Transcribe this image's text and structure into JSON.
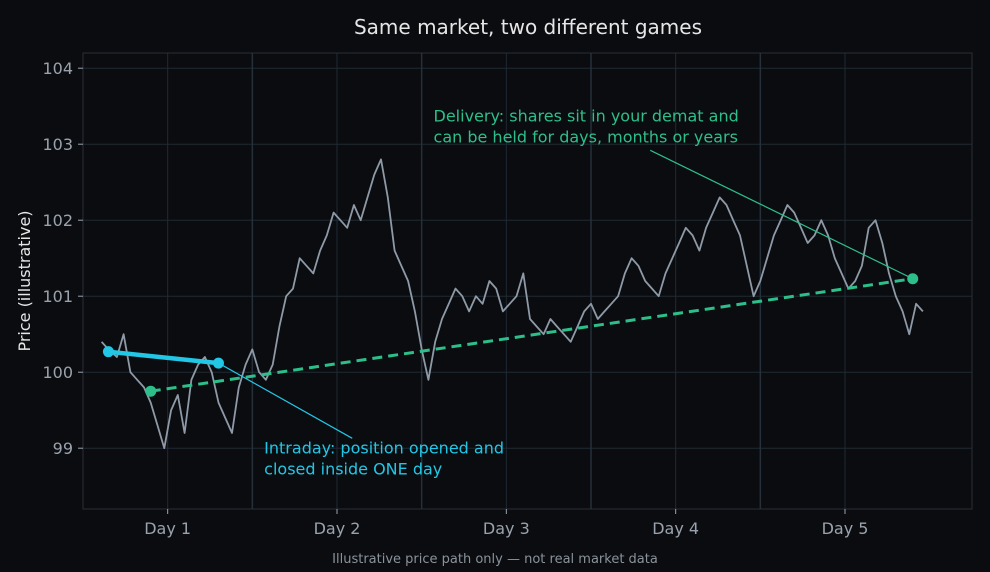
{
  "chart_data": {
    "type": "line",
    "title": "Same market, two different games",
    "xlabel": "",
    "ylabel": "Price (illustrative)",
    "footnote": "Illustrative price path only — not real market data",
    "x_ticks": [
      {
        "value": 1,
        "label": "Day 1"
      },
      {
        "value": 2,
        "label": "Day 2"
      },
      {
        "value": 3,
        "label": "Day 3"
      },
      {
        "value": 4,
        "label": "Day 4"
      },
      {
        "value": 5,
        "label": "Day 5"
      }
    ],
    "xlim": [
      0.5,
      5.75
    ],
    "ylim": [
      98.2,
      104.2
    ],
    "y_ticks": [
      99,
      100,
      101,
      102,
      103,
      104
    ],
    "day_separators": [
      1.5,
      2.5,
      3.5,
      4.5
    ],
    "grid": true,
    "colors": {
      "background": "#0b0c10",
      "plot_background": "#0b0c10",
      "grid": "#1f2a33",
      "separator": "#25303a",
      "price": "#8e9aa7",
      "intraday": "#22c7e6",
      "delivery": "#2dbf8a",
      "text": "#e6e6e6",
      "tick": "#9aa3ad",
      "footnote": "#8a929b"
    },
    "price_series": {
      "x": [
        0.61,
        0.65,
        0.7,
        0.74,
        0.78,
        0.82,
        0.86,
        0.9,
        0.94,
        0.98,
        1.02,
        1.06,
        1.1,
        1.14,
        1.18,
        1.22,
        1.26,
        1.3,
        1.34,
        1.38,
        1.42,
        1.46,
        1.5,
        1.54,
        1.58,
        1.62,
        1.66,
        1.7,
        1.74,
        1.78,
        1.82,
        1.86,
        1.9,
        1.94,
        1.98,
        2.02,
        2.06,
        2.1,
        2.14,
        2.18,
        2.22,
        2.26,
        2.3,
        2.34,
        2.38,
        2.42,
        2.46,
        2.5,
        2.54,
        2.58,
        2.62,
        2.66,
        2.7,
        2.74,
        2.78,
        2.82,
        2.86,
        2.9,
        2.94,
        2.98,
        3.02,
        3.06,
        3.1,
        3.14,
        3.18,
        3.22,
        3.26,
        3.3,
        3.34,
        3.38,
        3.42,
        3.46,
        3.5,
        3.54,
        3.58,
        3.62,
        3.66,
        3.7,
        3.74,
        3.78,
        3.82,
        3.86,
        3.9,
        3.94,
        3.98,
        4.02,
        4.06,
        4.1,
        4.14,
        4.18,
        4.22,
        4.26,
        4.3,
        4.34,
        4.38,
        4.42,
        4.46,
        4.5,
        4.54,
        4.58,
        4.62,
        4.66,
        4.7,
        4.74,
        4.78,
        4.82,
        4.86,
        4.9,
        4.94,
        4.98,
        5.02,
        5.06,
        5.1,
        5.14,
        5.18,
        5.22,
        5.26,
        5.3,
        5.34,
        5.38,
        5.42,
        5.46
      ],
      "y": [
        100.4,
        100.3,
        100.2,
        100.5,
        100.0,
        99.9,
        99.8,
        99.6,
        99.3,
        99.0,
        99.5,
        99.7,
        99.2,
        99.9,
        100.1,
        100.2,
        100.0,
        99.6,
        99.4,
        99.2,
        99.8,
        100.1,
        100.3,
        100.0,
        99.9,
        100.1,
        100.6,
        101.0,
        101.1,
        101.5,
        101.4,
        101.3,
        101.6,
        101.8,
        102.1,
        102.0,
        101.9,
        102.2,
        102.0,
        102.3,
        102.6,
        102.8,
        102.3,
        101.6,
        101.4,
        101.2,
        100.8,
        100.3,
        99.9,
        100.4,
        100.7,
        100.9,
        101.1,
        101.0,
        100.8,
        101.0,
        100.9,
        101.2,
        101.1,
        100.8,
        100.9,
        101.0,
        101.3,
        100.7,
        100.6,
        100.5,
        100.7,
        100.6,
        100.5,
        100.4,
        100.6,
        100.8,
        100.9,
        100.7,
        100.8,
        100.9,
        101.0,
        101.3,
        101.5,
        101.4,
        101.2,
        101.1,
        101.0,
        101.3,
        101.5,
        101.7,
        101.9,
        101.8,
        101.6,
        101.9,
        102.1,
        102.3,
        102.2,
        102.0,
        101.8,
        101.4,
        101.0,
        101.2,
        101.5,
        101.8,
        102.0,
        102.2,
        102.1,
        101.9,
        101.7,
        101.8,
        102.0,
        101.8,
        101.5,
        101.3,
        101.1,
        101.2,
        101.4,
        101.9,
        102.0,
        101.7,
        101.3,
        101.0,
        100.8,
        100.5,
        100.9,
        100.8
      ],
      "color": "#8e9aa7"
    },
    "intraday": {
      "x": [
        0.65,
        1.3
      ],
      "y": [
        100.27,
        100.12
      ],
      "color": "#22c7e6"
    },
    "delivery": {
      "x": [
        0.9,
        5.4
      ],
      "y": [
        99.75,
        101.23
      ],
      "color": "#2dbf8a"
    },
    "annotations": [
      {
        "id": "delivery",
        "lines": [
          "Delivery: shares sit in your demat and",
          "can be held for days, months or years"
        ],
        "text_x": 2.57,
        "text_y": 103.3,
        "arrow_from": [
          3.85,
          102.92
        ],
        "arrow_to": [
          5.4,
          101.23
        ],
        "color": "#2dbf8a"
      },
      {
        "id": "intraday",
        "lines": [
          "Intraday: position opened and",
          "closed inside ONE day"
        ],
        "text_x": 1.57,
        "text_y": 98.93,
        "arrow_from": [
          2.09,
          99.13
        ],
        "arrow_to": [
          1.3,
          100.12
        ],
        "color": "#22c7e6"
      }
    ]
  }
}
